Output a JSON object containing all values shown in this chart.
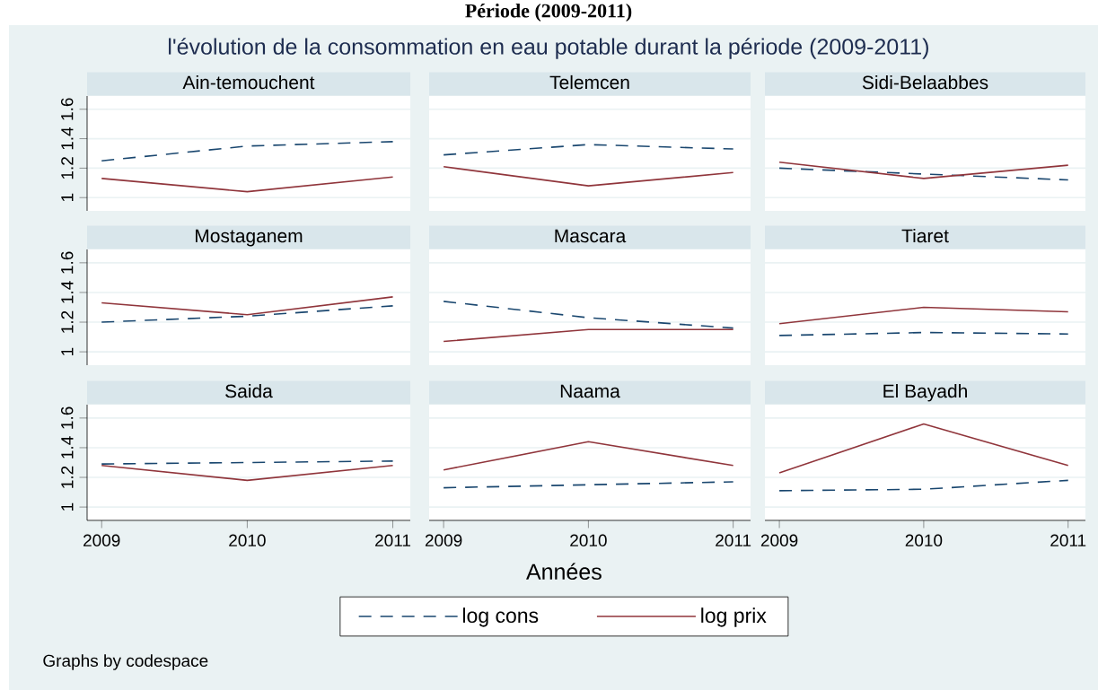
{
  "chart_data": [
    {
      "type": "line",
      "title": "Ain-temouchent",
      "annotations": [
        "Période (2009-2011)",
        "l'évolution de la consommation en eau potable durant la période (2009-2011)",
        "Graphs by codespace"
      ],
      "x": [
        2009,
        2010,
        2011
      ],
      "xlim": [
        2008.9,
        2011.12
      ],
      "ylim": [
        0.91,
        1.69
      ],
      "xticks": [
        2009,
        2010,
        2011
      ],
      "yticks": [
        1,
        1.2,
        1.4,
        1.6
      ],
      "grid": "y",
      "tick_labels": "y",
      "series": [
        {
          "color": "#1a476f",
          "line_style": "dashed",
          "values": [
            1.25,
            1.35,
            1.38
          ]
        },
        {
          "color": "#90353b",
          "line_style": "solid",
          "values": [
            1.13,
            1.04,
            1.14
          ]
        }
      ]
    },
    {
      "type": "line",
      "title": "Telemcen",
      "x": [
        2009,
        2010,
        2011
      ],
      "xlim": [
        2008.9,
        2011.12
      ],
      "ylim": [
        0.91,
        1.69
      ],
      "xticks": [
        2009,
        2010,
        2011
      ],
      "yticks": [
        1,
        1.2,
        1.4,
        1.6
      ],
      "grid": "y",
      "tick_labels": false,
      "series": [
        {
          "color": "#1a476f",
          "line_style": "dashed",
          "values": [
            1.29,
            1.36,
            1.33
          ]
        },
        {
          "color": "#90353b",
          "line_style": "solid",
          "values": [
            1.21,
            1.08,
            1.17
          ]
        }
      ]
    },
    {
      "type": "line",
      "title": "Sidi-Belaabbes",
      "x": [
        2009,
        2010,
        2011
      ],
      "xlim": [
        2008.9,
        2011.12
      ],
      "ylim": [
        0.91,
        1.69
      ],
      "xticks": [
        2009,
        2010,
        2011
      ],
      "yticks": [
        1,
        1.2,
        1.4,
        1.6
      ],
      "grid": "y",
      "tick_labels": false,
      "series": [
        {
          "color": "#1a476f",
          "line_style": "dashed",
          "values": [
            1.2,
            1.16,
            1.12
          ]
        },
        {
          "color": "#90353b",
          "line_style": "solid",
          "values": [
            1.24,
            1.13,
            1.22
          ]
        }
      ]
    },
    {
      "type": "line",
      "title": "Mostaganem",
      "x": [
        2009,
        2010,
        2011
      ],
      "xlim": [
        2008.9,
        2011.12
      ],
      "ylim": [
        0.91,
        1.69
      ],
      "xticks": [
        2009,
        2010,
        2011
      ],
      "yticks": [
        1,
        1.2,
        1.4,
        1.6
      ],
      "grid": "y",
      "tick_labels": "y",
      "series": [
        {
          "color": "#1a476f",
          "line_style": "dashed",
          "values": [
            1.2,
            1.24,
            1.31
          ]
        },
        {
          "color": "#90353b",
          "line_style": "solid",
          "values": [
            1.33,
            1.25,
            1.37
          ]
        }
      ]
    },
    {
      "type": "line",
      "title": "Mascara",
      "x": [
        2009,
        2010,
        2011
      ],
      "xlim": [
        2008.9,
        2011.12
      ],
      "ylim": [
        0.91,
        1.69
      ],
      "xticks": [
        2009,
        2010,
        2011
      ],
      "yticks": [
        1,
        1.2,
        1.4,
        1.6
      ],
      "grid": "y",
      "tick_labels": false,
      "series": [
        {
          "color": "#1a476f",
          "line_style": "dashed",
          "values": [
            1.34,
            1.23,
            1.16
          ]
        },
        {
          "color": "#90353b",
          "line_style": "solid",
          "values": [
            1.07,
            1.15,
            1.15
          ]
        }
      ]
    },
    {
      "type": "line",
      "title": "Tiaret",
      "x": [
        2009,
        2010,
        2011
      ],
      "xlim": [
        2008.9,
        2011.12
      ],
      "ylim": [
        0.91,
        1.69
      ],
      "xticks": [
        2009,
        2010,
        2011
      ],
      "yticks": [
        1,
        1.2,
        1.4,
        1.6
      ],
      "grid": "y",
      "tick_labels": false,
      "series": [
        {
          "color": "#1a476f",
          "line_style": "dashed",
          "values": [
            1.11,
            1.13,
            1.12
          ]
        },
        {
          "color": "#90353b",
          "line_style": "solid",
          "values": [
            1.19,
            1.3,
            1.27
          ]
        }
      ]
    },
    {
      "type": "line",
      "title": "Saida",
      "x": [
        2009,
        2010,
        2011
      ],
      "xlim": [
        2008.9,
        2011.12
      ],
      "ylim": [
        0.91,
        1.69
      ],
      "xticks": [
        2009,
        2010,
        2011
      ],
      "yticks": [
        1,
        1.2,
        1.4,
        1.6
      ],
      "grid": "y",
      "series": [
        {
          "color": "#1a476f",
          "line_style": "dashed",
          "values": [
            1.29,
            1.3,
            1.31
          ]
        },
        {
          "color": "#90353b",
          "line_style": "solid",
          "values": [
            1.28,
            1.18,
            1.28
          ]
        }
      ]
    },
    {
      "type": "line",
      "title": "Naama",
      "xlabel": "Années",
      "legend": "bottom",
      "x": [
        2009,
        2010,
        2011
      ],
      "xlim": [
        2008.9,
        2011.12
      ],
      "ylim": [
        0.91,
        1.69
      ],
      "xticks": [
        2009,
        2010,
        2011
      ],
      "yticks": [
        1,
        1.2,
        1.4,
        1.6
      ],
      "grid": "y",
      "tick_labels": "x",
      "series": [
        {
          "name": "log cons",
          "color": "#1a476f",
          "line_style": "dashed",
          "values": [
            1.13,
            1.15,
            1.17
          ]
        },
        {
          "name": "log prix",
          "color": "#90353b",
          "line_style": "solid",
          "values": [
            1.25,
            1.44,
            1.28
          ]
        }
      ]
    },
    {
      "type": "line",
      "title": "El Bayadh",
      "x": [
        2009,
        2010,
        2011
      ],
      "xlim": [
        2008.9,
        2011.12
      ],
      "ylim": [
        0.91,
        1.69
      ],
      "xticks": [
        2009,
        2010,
        2011
      ],
      "yticks": [
        1,
        1.2,
        1.4,
        1.6
      ],
      "grid": "y",
      "tick_labels": "x",
      "series": [
        {
          "color": "#1a476f",
          "line_style": "dashed",
          "values": [
            1.11,
            1.12,
            1.18
          ]
        },
        {
          "color": "#90353b",
          "line_style": "solid",
          "values": [
            1.23,
            1.56,
            1.28
          ]
        }
      ]
    }
  ]
}
